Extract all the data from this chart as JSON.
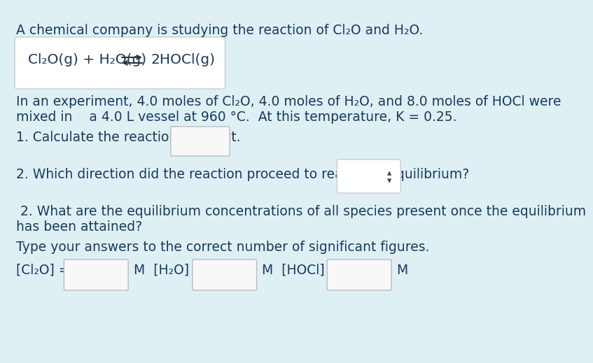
{
  "background_color": "#dff0f5",
  "box_color": "#ffffff",
  "text_color": "#1a3a5c",
  "title_text": "A chemical company is studying the reaction of Cl₂O and H₂O.",
  "reactants": "Cl₂O(g) + H₂O(g)",
  "products": "2HOCl(g)",
  "paragraph1_line1": "In an experiment, 4.0 moles of Cl₂O, 4.0 moles of H₂O, and 8.0 moles of HOCl were",
  "paragraph1_line2": "mixed in    a 4.0 L vessel at 960 °C.  At this temperature, K⁣ = 0.25.",
  "q1_text": "1. Calculate the reaction quotient.",
  "q2_text": "2. Which direction did the reaction proceed to reach the equilibrium?",
  "q3_line1": " 2. What are the equilibrium concentrations of all species present once the equilibrium",
  "q3_line2": "has been attained?",
  "type_text": "Type your answers to the correct number of significant figures.",
  "label1": "[Cl₂O] =",
  "label2": "M  [H₂O] =",
  "label3": "M  [HOCl] =",
  "label4": "M",
  "input_box_color": "#f8f8f8",
  "input_box_border": "#bbbbbb",
  "font_size_main": 13.5,
  "font_size_reaction": 14.5
}
